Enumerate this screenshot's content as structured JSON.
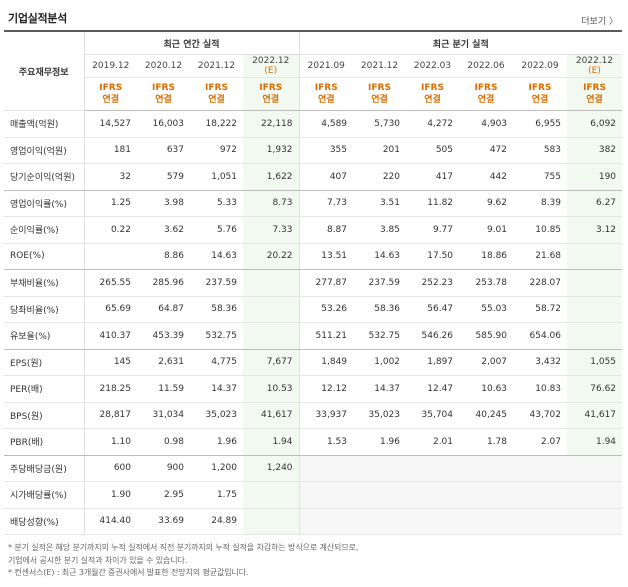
{
  "header": {
    "title": "기업실적분석",
    "more_label": "더보기"
  },
  "table": {
    "row_header_label": "주요재무정보",
    "group_annual": "최근 연간 실적",
    "group_quarter": "최근 분기 실적",
    "annual_periods": [
      "2019.12",
      "2020.12",
      "2021.12",
      "2022.12"
    ],
    "annual_estimate_mark": "(E)",
    "quarter_periods": [
      "2021.09",
      "2021.12",
      "2022.03",
      "2022.06",
      "2022.09",
      "2022.12"
    ],
    "quarter_estimate_mark": "(E)",
    "basis_line1": "IFRS",
    "basis_line2": "연결",
    "rows": [
      {
        "label": "매출액(억원)",
        "a": [
          "14,527",
          "16,003",
          "18,222",
          "22,118"
        ],
        "q": [
          "4,589",
          "5,730",
          "4,272",
          "4,903",
          "6,955",
          "6,092"
        ]
      },
      {
        "label": "영업이익(억원)",
        "a": [
          "181",
          "637",
          "972",
          "1,932"
        ],
        "q": [
          "355",
          "201",
          "505",
          "472",
          "583",
          "382"
        ]
      },
      {
        "label": "당기순이익(억원)",
        "a": [
          "32",
          "579",
          "1,051",
          "1,622"
        ],
        "q": [
          "407",
          "220",
          "417",
          "442",
          "755",
          "190"
        ]
      },
      {
        "label": "영업이익률(%)",
        "a": [
          "1.25",
          "3.98",
          "5.33",
          "8.73"
        ],
        "q": [
          "7.73",
          "3.51",
          "11.82",
          "9.62",
          "8.39",
          "6.27"
        ]
      },
      {
        "label": "순이익률(%)",
        "a": [
          "0.22",
          "3.62",
          "5.76",
          "7.33"
        ],
        "q": [
          "8.87",
          "3.85",
          "9.77",
          "9.01",
          "10.85",
          "3.12"
        ]
      },
      {
        "label": "ROE(%)",
        "a": [
          "",
          "8.86",
          "14.63",
          "20.22"
        ],
        "q": [
          "13.51",
          "14.63",
          "17.50",
          "18.86",
          "21.68",
          ""
        ]
      },
      {
        "label": "부채비율(%)",
        "a": [
          "265.55",
          "285.96",
          "237.59",
          ""
        ],
        "q": [
          "277.87",
          "237.59",
          "252.23",
          "253.78",
          "228.07",
          ""
        ]
      },
      {
        "label": "당좌비율(%)",
        "a": [
          "65.69",
          "64.87",
          "58.36",
          ""
        ],
        "q": [
          "53.26",
          "58.36",
          "56.47",
          "55.03",
          "58.72",
          ""
        ]
      },
      {
        "label": "유보율(%)",
        "a": [
          "410.37",
          "453.39",
          "532.75",
          ""
        ],
        "q": [
          "511.21",
          "532.75",
          "546.26",
          "585.90",
          "654.06",
          ""
        ]
      },
      {
        "label": "EPS(원)",
        "a": [
          "145",
          "2,631",
          "4,775",
          "7,677"
        ],
        "q": [
          "1,849",
          "1,002",
          "1,897",
          "2,007",
          "3,432",
          "1,055"
        ]
      },
      {
        "label": "PER(배)",
        "a": [
          "218.25",
          "11.59",
          "14.37",
          "10.53"
        ],
        "q": [
          "12.12",
          "14.37",
          "12.47",
          "10.63",
          "10.83",
          "76.62"
        ]
      },
      {
        "label": "BPS(원)",
        "a": [
          "28,817",
          "31,034",
          "35,023",
          "41,617"
        ],
        "q": [
          "33,937",
          "35,023",
          "35,704",
          "40,245",
          "43,702",
          "41,617"
        ]
      },
      {
        "label": "PBR(배)",
        "a": [
          "1.10",
          "0.98",
          "1.96",
          "1.94"
        ],
        "q": [
          "1.53",
          "1.96",
          "2.01",
          "1.78",
          "2.07",
          "1.94"
        ]
      },
      {
        "label": "주당배당금(원)",
        "a": [
          "600",
          "900",
          "1,200",
          "1,240"
        ],
        "q": [
          "",
          "",
          "",
          "",
          "",
          ""
        ]
      },
      {
        "label": "시가배당률(%)",
        "a": [
          "1.90",
          "2.95",
          "1.75",
          ""
        ],
        "q": [
          "",
          "",
          "",
          "",
          "",
          ""
        ]
      },
      {
        "label": "배당성향(%)",
        "a": [
          "414.40",
          "33.69",
          "24.89",
          ""
        ],
        "q": [
          "",
          "",
          "",
          "",
          "",
          ""
        ]
      }
    ]
  },
  "notes": [
    "* 분기 실적은 해당 분기까지의 누적 실적에서 직전 분기까지의 누적 실적을 차감하는 방식으로 계산되므로,",
    "  기업에서 공시한 분기 실적과 차이가 있을 수 있습니다.",
    "* 컨센서스(E) : 최근 3개월간 증권사에서 발표한 전망치의 평균값입니다."
  ]
}
